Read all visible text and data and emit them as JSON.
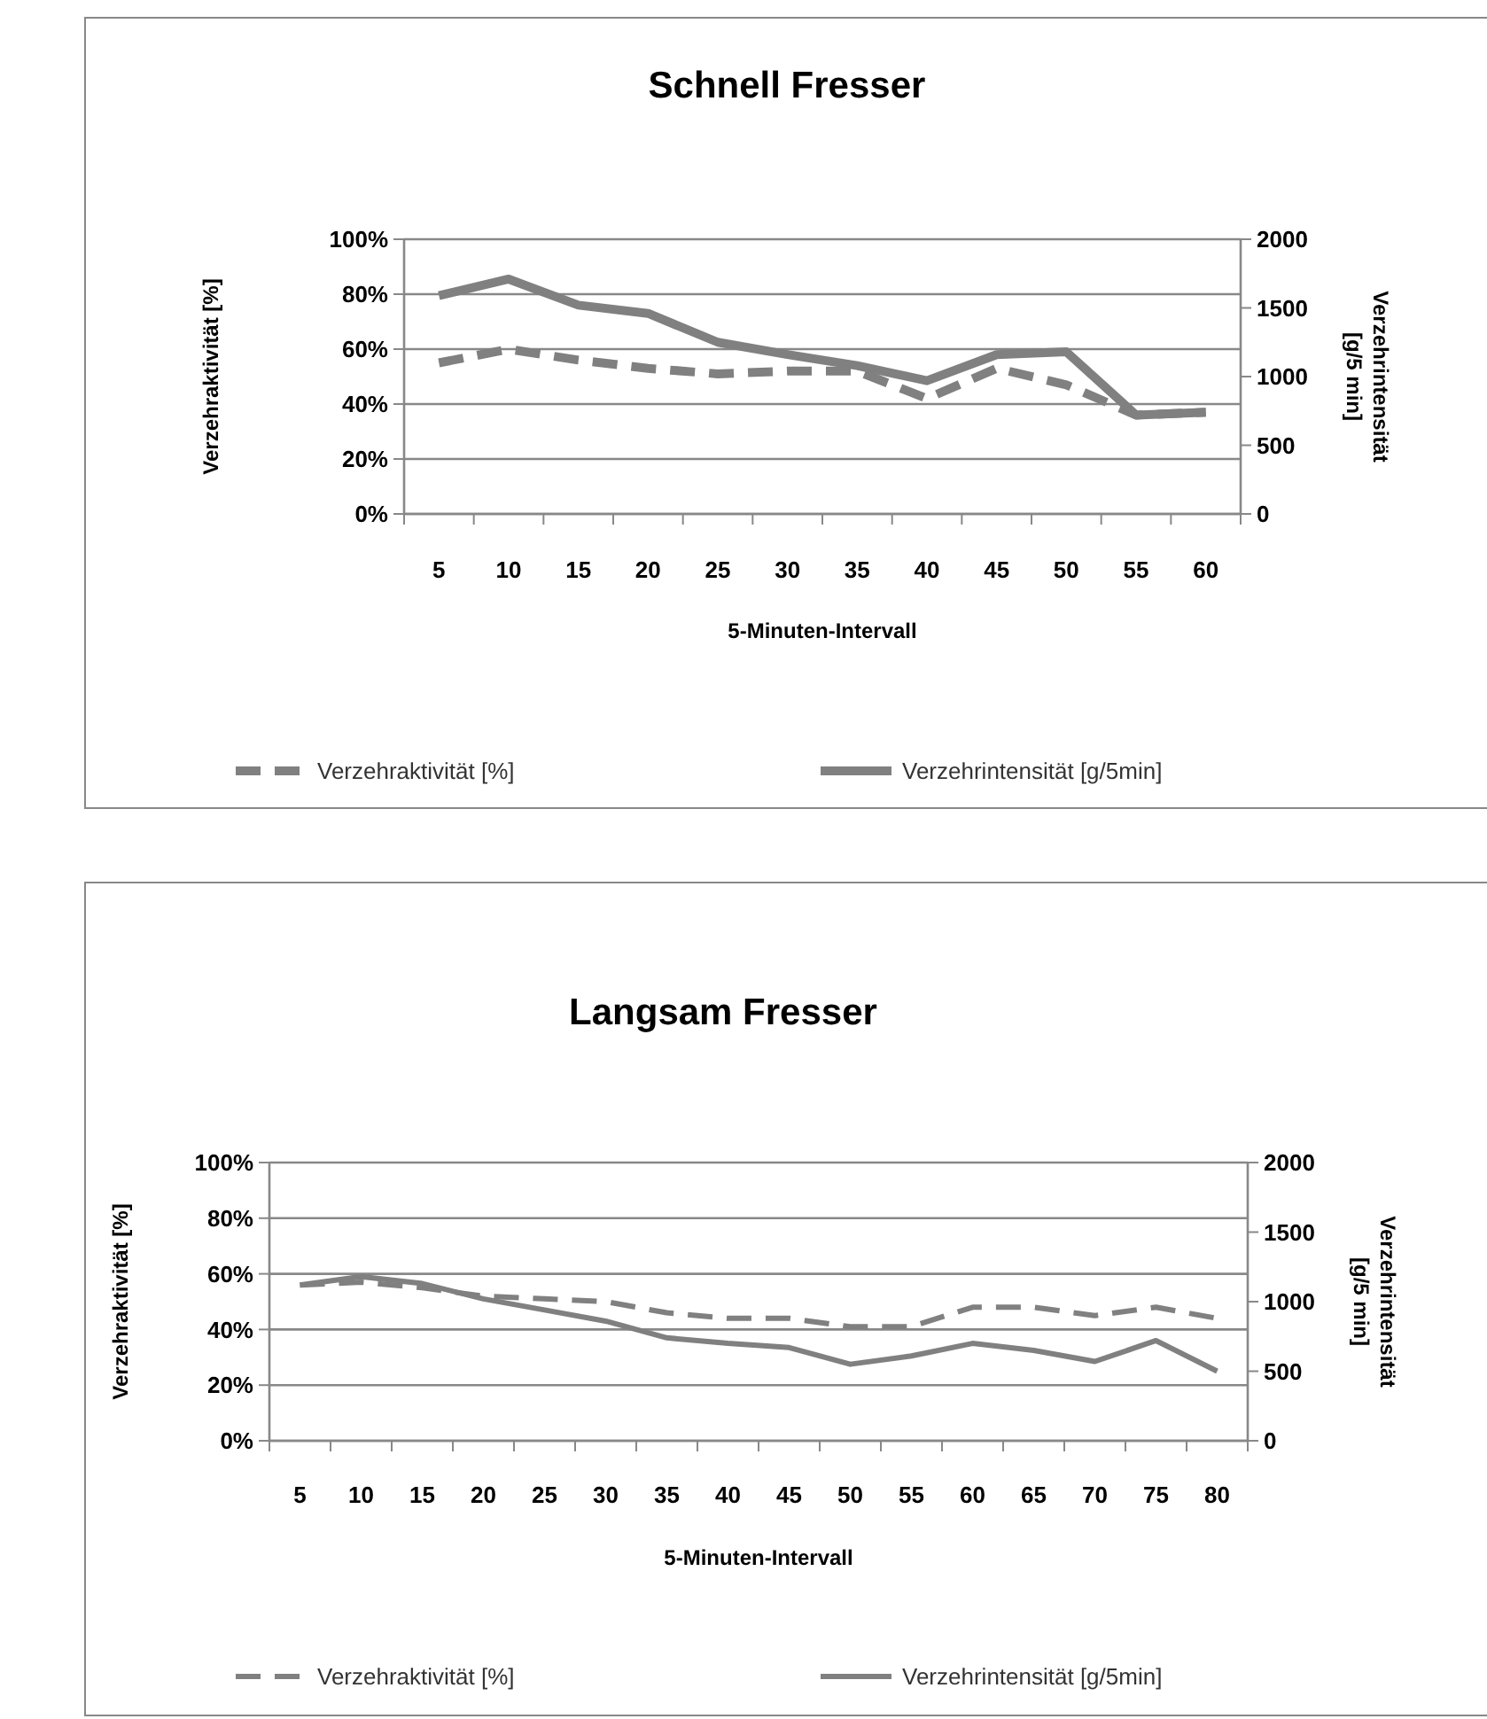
{
  "chart_data": [
    {
      "type": "line",
      "title": "Schnell Fresser",
      "xlabel": "5-Minuten-Intervall",
      "ylabel": "Verzehraktivität [%]",
      "y2label": "Verzehrintensität [g/5 min]",
      "categories": [
        "5",
        "10",
        "15",
        "20",
        "25",
        "30",
        "35",
        "40",
        "45",
        "50",
        "55",
        "60"
      ],
      "series": [
        {
          "name": "Verzehraktivität [%]",
          "color": "#808080",
          "line_style": "dashed",
          "values": [
            55,
            60,
            56,
            53,
            51,
            52,
            52,
            42,
            53,
            47,
            36,
            37
          ]
        },
        {
          "name": "Verzehrintensität [g/5min]",
          "color": "#808080",
          "line_style": "solid",
          "axis": "y2",
          "values": [
            1590,
            1710,
            1520,
            1460,
            1250,
            1160,
            1080,
            970,
            1160,
            1180,
            720,
            740
          ]
        }
      ],
      "ylim": [
        0,
        100
      ],
      "yticks": [
        {
          "value": 0,
          "label": "0%"
        },
        {
          "value": 20,
          "label": "20%"
        },
        {
          "value": 40,
          "label": "40%"
        },
        {
          "value": 60,
          "label": "60%"
        },
        {
          "value": 80,
          "label": "80%"
        },
        {
          "value": 100,
          "label": "100%"
        }
      ],
      "y2lim": [
        0,
        2000
      ],
      "y2ticks": [
        0,
        500,
        1000,
        1500,
        2000
      ],
      "grid": "y",
      "legend": "bottom"
    },
    {
      "type": "line",
      "title": "Langsam Fresser",
      "xlabel": "5-Minuten-Intervall",
      "ylabel": "Verzehraktivität [%]",
      "y2label": "Verzehrintensität [g/5 min]",
      "categories": [
        "5",
        "10",
        "15",
        "20",
        "25",
        "30",
        "35",
        "40",
        "45",
        "50",
        "55",
        "60",
        "65",
        "70",
        "75",
        "80"
      ],
      "series": [
        {
          "name": "Verzehraktivität [%]",
          "color": "#808080",
          "line_style": "dashed",
          "values": [
            56,
            57,
            55,
            52,
            51,
            50,
            46,
            44,
            44,
            41,
            41,
            48,
            48,
            45,
            48,
            44
          ]
        },
        {
          "name": "Verzehrintensität [g/5min]",
          "color": "#808080",
          "line_style": "solid",
          "axis": "y2",
          "values": [
            1120,
            1180,
            1130,
            1020,
            940,
            860,
            740,
            700,
            670,
            550,
            610,
            700,
            650,
            570,
            720,
            500
          ]
        }
      ],
      "ylim": [
        0,
        100
      ],
      "yticks": [
        {
          "value": 0,
          "label": "0%"
        },
        {
          "value": 20,
          "label": "20%"
        },
        {
          "value": 40,
          "label": "40%"
        },
        {
          "value": 60,
          "label": "60%"
        },
        {
          "value": 80,
          "label": "80%"
        },
        {
          "value": 100,
          "label": "100%"
        }
      ],
      "y2lim": [
        0,
        2000
      ],
      "y2ticks": [
        0,
        500,
        1000,
        1500,
        2000
      ],
      "grid": "y",
      "legend": "bottom"
    }
  ]
}
